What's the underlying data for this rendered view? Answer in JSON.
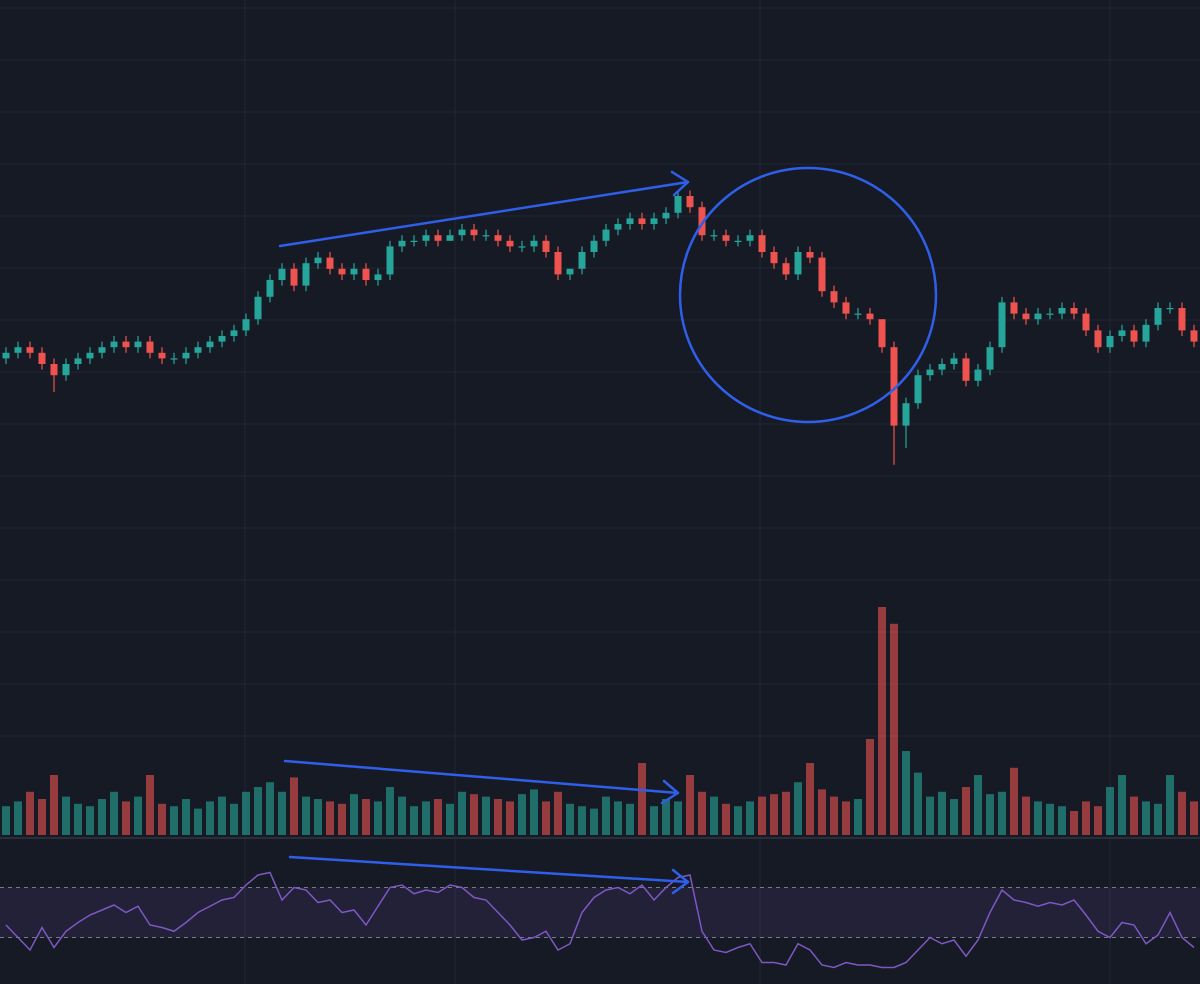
{
  "chart_data": [
    {
      "type": "candlestick",
      "up_color": "#26a69a",
      "down_color": "#ef5350",
      "ylim": [
        0,
        100
      ],
      "open": [
        36,
        37,
        38,
        37,
        35,
        33,
        35,
        36,
        37,
        38,
        39,
        38,
        39,
        37,
        36,
        36,
        37,
        38,
        39,
        40,
        41,
        43,
        47,
        50,
        52,
        49,
        53,
        54,
        52,
        51,
        52,
        50,
        51,
        56,
        57,
        57,
        58,
        57,
        58,
        59,
        58,
        58,
        57,
        56,
        56,
        57,
        55,
        51,
        52,
        55,
        57,
        59,
        60,
        61,
        60,
        61,
        62,
        65,
        63,
        58,
        58,
        57,
        57,
        58,
        55,
        53,
        51,
        55,
        54,
        48,
        46,
        44,
        44,
        43,
        38,
        24,
        28,
        33,
        34,
        35,
        36,
        32,
        34,
        38,
        46,
        44,
        43,
        44,
        44,
        45,
        44,
        41,
        38,
        40,
        41,
        39,
        42,
        45,
        45,
        41
      ],
      "high": [
        38,
        39,
        39,
        38,
        36,
        36,
        37,
        38,
        39,
        40,
        40,
        40,
        40,
        38,
        37,
        38,
        39,
        40,
        41,
        42,
        44,
        48,
        51,
        53,
        53,
        54,
        55,
        55,
        53,
        53,
        53,
        52,
        57,
        58,
        58,
        59,
        59,
        59,
        60,
        60,
        59,
        59,
        58,
        57,
        58,
        58,
        56,
        52,
        56,
        58,
        60,
        61,
        62,
        62,
        62,
        63,
        66,
        66,
        64,
        59,
        59,
        58,
        59,
        59,
        56,
        54,
        56,
        56,
        55,
        49,
        47,
        45,
        45,
        42,
        39,
        29,
        34,
        35,
        36,
        37,
        37,
        35,
        39,
        47,
        47,
        45,
        45,
        45,
        46,
        46,
        45,
        42,
        41,
        42,
        42,
        43,
        46,
        46,
        46,
        42
      ],
      "low": [
        35,
        36,
        36,
        34,
        30,
        32,
        34,
        35,
        36,
        37,
        37,
        37,
        36,
        35,
        35,
        35,
        36,
        37,
        38,
        39,
        40,
        42,
        46,
        49,
        48,
        48,
        52,
        51,
        50,
        50,
        49,
        49,
        50,
        55,
        56,
        56,
        56,
        57,
        57,
        57,
        57,
        56,
        55,
        55,
        55,
        54,
        50,
        50,
        51,
        54,
        56,
        58,
        59,
        59,
        59,
        60,
        61,
        62,
        57,
        57,
        56,
        56,
        56,
        54,
        52,
        50,
        50,
        53,
        47,
        45,
        43,
        43,
        42,
        37,
        17,
        20,
        27,
        32,
        33,
        34,
        31,
        31,
        33,
        37,
        43,
        42,
        42,
        43,
        43,
        43,
        40,
        37,
        37,
        39,
        38,
        38,
        41,
        44,
        40,
        38
      ],
      "close": [
        37,
        38,
        37,
        35,
        33,
        35,
        36,
        37,
        38,
        39,
        38,
        39,
        37,
        36,
        36,
        37,
        38,
        39,
        40,
        41,
        43,
        47,
        50,
        52,
        49,
        53,
        54,
        52,
        51,
        52,
        50,
        51,
        56,
        57,
        57,
        58,
        57,
        58,
        59,
        58,
        58,
        57,
        56,
        56,
        57,
        55,
        51,
        52,
        55,
        57,
        59,
        60,
        61,
        60,
        61,
        62,
        65,
        63,
        58,
        58,
        57,
        57,
        58,
        55,
        53,
        51,
        55,
        54,
        48,
        46,
        44,
        44,
        43,
        38,
        24,
        28,
        33,
        34,
        35,
        36,
        32,
        34,
        38,
        46,
        44,
        43,
        44,
        44,
        45,
        44,
        41,
        38,
        40,
        41,
        39,
        42,
        45,
        45,
        41,
        39
      ]
    },
    {
      "type": "bar",
      "ylim": [
        0,
        100
      ],
      "values": [
        12,
        14,
        18,
        15,
        25,
        16,
        13,
        12,
        15,
        18,
        14,
        16,
        25,
        13,
        12,
        15,
        11,
        14,
        16,
        13,
        18,
        20,
        22,
        18,
        24,
        16,
        15,
        14,
        13,
        17,
        15,
        14,
        20,
        16,
        12,
        14,
        15,
        13,
        18,
        17,
        16,
        15,
        14,
        17,
        19,
        14,
        18,
        13,
        12,
        11,
        16,
        14,
        13,
        30,
        12,
        15,
        14,
        25,
        18,
        16,
        13,
        12,
        14,
        16,
        17,
        18,
        22,
        30,
        19,
        16,
        14,
        15,
        40,
        95,
        88,
        35,
        26,
        16,
        18,
        15,
        20,
        25,
        17,
        18,
        28,
        16,
        14,
        13,
        12,
        10,
        14,
        12,
        20,
        25,
        16,
        14,
        13,
        25,
        18,
        14
      ]
    },
    {
      "type": "line",
      "color": "#7e57c2",
      "ylim": [
        0,
        100
      ],
      "levels": [
        30,
        70
      ],
      "values": [
        40,
        30,
        20,
        38,
        22,
        35,
        42,
        48,
        52,
        56,
        50,
        55,
        40,
        38,
        35,
        42,
        50,
        55,
        60,
        62,
        72,
        80,
        82,
        60,
        70,
        68,
        58,
        60,
        50,
        52,
        40,
        55,
        70,
        72,
        65,
        68,
        66,
        72,
        70,
        62,
        60,
        50,
        40,
        28,
        30,
        35,
        20,
        25,
        50,
        62,
        68,
        70,
        65,
        72,
        60,
        70,
        78,
        80,
        35,
        20,
        18,
        22,
        25,
        10,
        10,
        8,
        25,
        20,
        8,
        6,
        10,
        8,
        8,
        6,
        6,
        10,
        20,
        30,
        25,
        28,
        15,
        28,
        50,
        68,
        60,
        58,
        55,
        58,
        56,
        60,
        48,
        35,
        30,
        42,
        40,
        25,
        32,
        50,
        30,
        22
      ]
    }
  ]
}
